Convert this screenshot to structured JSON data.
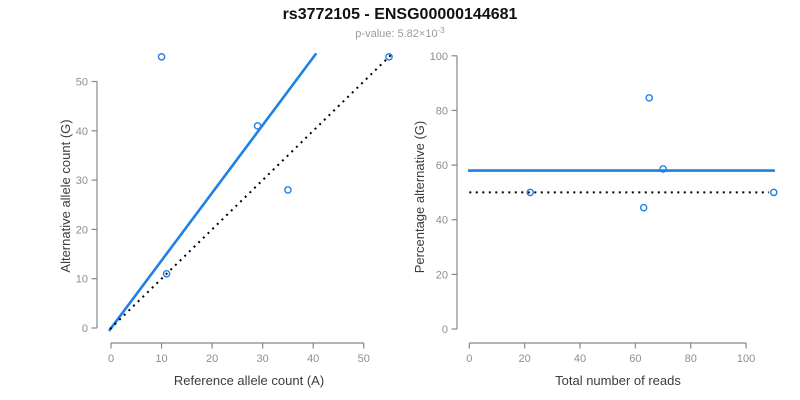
{
  "header": {
    "title": "rs3772105 - ENSG00000144681",
    "pvalue_text": "p-value: 5.82×10",
    "pvalue_exponent": "-3"
  },
  "colors": {
    "accent_blue": "#1f80e4",
    "identity_black": "#000000",
    "axis_gray": "#888888",
    "tick_label_gray": "#8e8e8e",
    "axis_title_gray": "#3c3c3c",
    "subtitle_gray": "#9a9a9a"
  },
  "chart_data": [
    {
      "type": "scatter",
      "title": "rs3772105 - ENSG00000144681",
      "subtitle": "p-value: 5.82×10^-3",
      "xlabel": "Reference allele count (A)",
      "ylabel": "Alternative allele count (G)",
      "xlim": [
        0,
        55
      ],
      "ylim": [
        0,
        55
      ],
      "xticks": [
        0,
        10,
        20,
        30,
        40,
        50
      ],
      "yticks": [
        0,
        10,
        20,
        30,
        40,
        50
      ],
      "grid": false,
      "points": [
        [
          10,
          55
        ],
        [
          11,
          11
        ],
        [
          29,
          41
        ],
        [
          35,
          28
        ],
        [
          55,
          55
        ]
      ],
      "lines": [
        {
          "name": "fit-line",
          "style": "solid",
          "color_key": "accent_blue",
          "width": 2.6,
          "points": [
            [
              -0.4,
              -0.6
            ],
            [
              40.6,
              55.7
            ]
          ],
          "meaning": "fitted allelic ratio, slope ~1.36"
        },
        {
          "name": "identity-line",
          "style": "dotted",
          "color_key": "identity_black",
          "width": 2,
          "points": [
            [
              -0.2,
              -0.2
            ],
            [
              55.4,
              55.4
            ]
          ],
          "meaning": "y = x (balanced expression)"
        }
      ]
    },
    {
      "type": "scatter",
      "xlabel": "Total number of reads",
      "ylabel": "Percentage alternative (G)",
      "xlim": [
        0,
        110
      ],
      "ylim": [
        0,
        100
      ],
      "xticks": [
        0,
        20,
        40,
        60,
        80,
        100
      ],
      "yticks": [
        0,
        20,
        40,
        60,
        80,
        100
      ],
      "grid": false,
      "points": [
        [
          65,
          84.6
        ],
        [
          22,
          50
        ],
        [
          70,
          58.6
        ],
        [
          63,
          44.4
        ],
        [
          110,
          50
        ]
      ],
      "lines": [
        {
          "name": "fit-line",
          "style": "solid",
          "color_key": "accent_blue",
          "width": 2.6,
          "points": [
            [
              -0.5,
              58
            ],
            [
              110.4,
              58
            ]
          ],
          "meaning": "fitted percentage ~58%"
        },
        {
          "name": "identity-line",
          "style": "dotted",
          "color_key": "identity_black",
          "width": 2,
          "points": [
            [
              0,
              50
            ],
            [
              108.3,
              50
            ]
          ],
          "meaning": "50% null expectation"
        }
      ]
    }
  ]
}
